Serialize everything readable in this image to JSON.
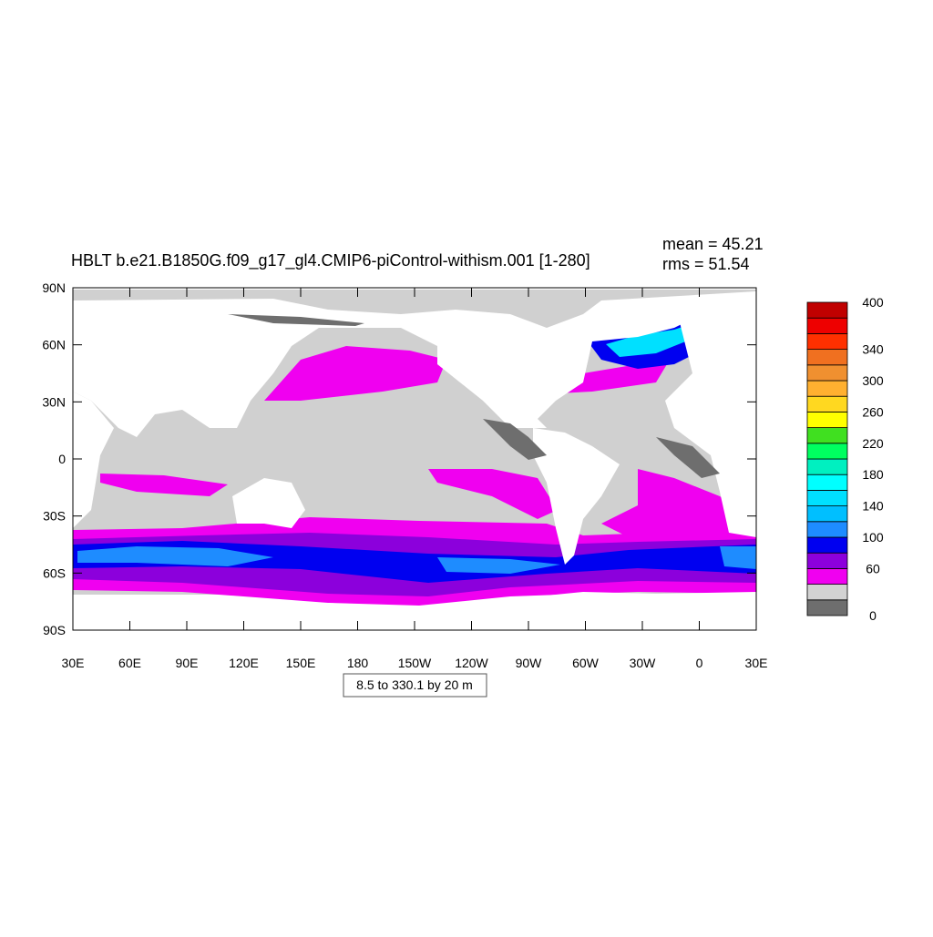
{
  "title": "HBLT b.e21.B1850G.f09_g17_gl4.CMIP6-piControl-withism.001 [1-280]",
  "stats": {
    "mean": "mean = 45.21",
    "rms": "rms = 51.54"
  },
  "lat_labels": [
    "90N",
    "60N",
    "30N",
    "0",
    "30S",
    "60S",
    "90S"
  ],
  "lon_labels": [
    "30E",
    "60E",
    "90E",
    "120E",
    "150E",
    "180",
    "150W",
    "120W",
    "90W",
    "60W",
    "30W",
    "0",
    "30E"
  ],
  "contour_info": "8.5 to 330.1 by 20 m",
  "colorbar": {
    "range": [
      0,
      400
    ],
    "labels": [
      0,
      60,
      100,
      140,
      180,
      220,
      260,
      300,
      340,
      400
    ],
    "colors": [
      "#6e6e6e",
      "#d2d2d2",
      "#f000f0",
      "#8c00dc",
      "#0000f0",
      "#1e8cff",
      "#00bfff",
      "#00e0ff",
      "#00ffff",
      "#00f0c0",
      "#00ff60",
      "#40e020",
      "#ffff00",
      "#ffd820",
      "#ffb030",
      "#f09030",
      "#f07020",
      "#ff3000",
      "#ee0000",
      "#c00000"
    ]
  }
}
